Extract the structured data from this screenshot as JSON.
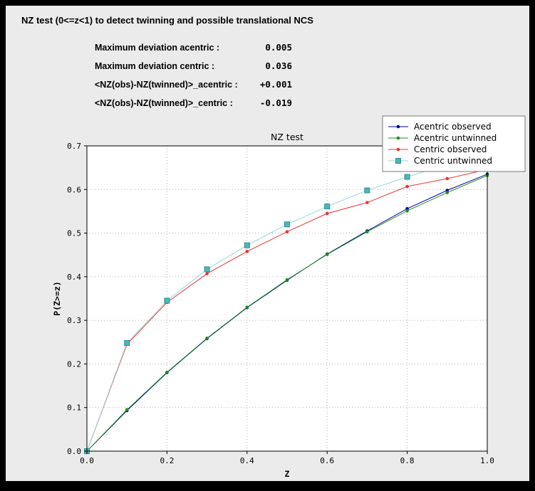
{
  "header": {
    "title": "NZ test (0<=z<1) to detect twinning and possible translational NCS"
  },
  "stats": {
    "rows": [
      {
        "label": "Maximum deviation acentric :",
        "value": "0.005"
      },
      {
        "label": "Maximum deviation centric :",
        "value": "0.036"
      },
      {
        "label": "<NZ(obs)-NZ(twinned)>_acentric :",
        "value": "+0.001"
      },
      {
        "label": "<NZ(obs)-NZ(twinned)>_centric :",
        "value": "-0.019"
      }
    ]
  },
  "chart_data": {
    "type": "line",
    "title": "NZ test",
    "xlabel": "Z",
    "ylabel": "P(Z>=z)",
    "xlim": [
      0.0,
      1.0
    ],
    "ylim": [
      0.0,
      0.7
    ],
    "x_ticks": [
      0.0,
      0.2,
      0.4,
      0.6,
      0.8,
      1.0
    ],
    "y_ticks": [
      0.0,
      0.1,
      0.2,
      0.3,
      0.4,
      0.5,
      0.6,
      0.7
    ],
    "grid": true,
    "grid_style": "dotted",
    "grid_color": "#b4b4b4",
    "plot_background": "#ffffff",
    "figure_background": "#ebebeb",
    "legend_position": "top-right",
    "x": [
      0.0,
      0.1,
      0.2,
      0.3,
      0.4,
      0.5,
      0.6,
      0.7,
      0.8,
      0.9,
      1.0
    ],
    "series": [
      {
        "name": "Acentric observed",
        "color": "#000099",
        "marker": "circle",
        "values": [
          0.0,
          0.093,
          0.18,
          0.258,
          0.329,
          0.392,
          0.452,
          0.505,
          0.556,
          0.598,
          0.635
        ]
      },
      {
        "name": "Acentric untwinned",
        "color": "#228b22",
        "marker": "circle",
        "values": [
          0.0,
          0.095,
          0.181,
          0.259,
          0.33,
          0.393,
          0.451,
          0.503,
          0.551,
          0.593,
          0.632
        ]
      },
      {
        "name": "Centric observed",
        "color": "#ee3333",
        "marker": "circle",
        "values": [
          0.0,
          0.245,
          0.341,
          0.407,
          0.458,
          0.503,
          0.545,
          0.57,
          0.607,
          0.625,
          0.646
        ]
      },
      {
        "name": "Centric untwinned",
        "color": "#99d8d8",
        "marker": "square",
        "marker_color": "#4db6b6",
        "marker_edge": "#2f8f8f",
        "values": [
          0.0,
          0.248,
          0.345,
          0.417,
          0.472,
          0.52,
          0.561,
          0.598,
          0.629,
          0.657,
          0.683
        ]
      }
    ]
  }
}
